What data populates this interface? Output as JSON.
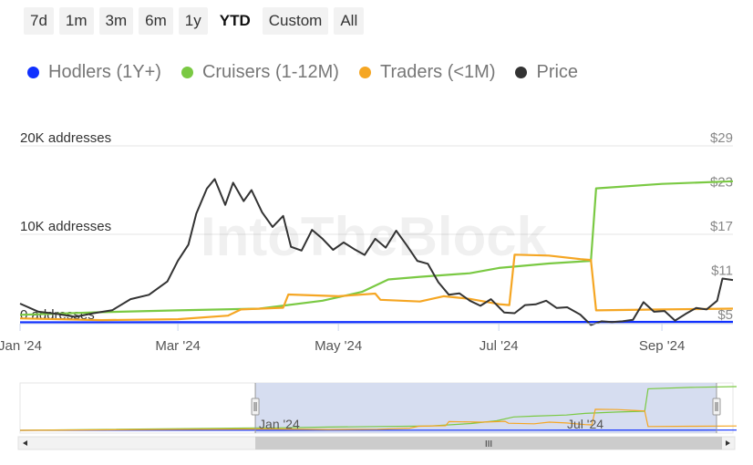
{
  "range_selector": {
    "buttons": [
      "7d",
      "1m",
      "3m",
      "6m",
      "1y",
      "YTD",
      "Custom",
      "All"
    ],
    "active": "YTD"
  },
  "legend": [
    {
      "name": "Hodlers (1Y+)",
      "color": "#1030ff"
    },
    {
      "name": "Cruisers (1-12M)",
      "color": "#7ac943"
    },
    {
      "name": "Traders (<1M)",
      "color": "#f5a623"
    },
    {
      "name": "Price",
      "color": "#333333"
    }
  ],
  "watermark": "IntoTheBlock",
  "chart_data": {
    "type": "line",
    "x_axis": {
      "ticks": [
        "Jan '24",
        "Mar '24",
        "May '24",
        "Jul '24",
        "Sep '24"
      ],
      "range": [
        "2024-01-01",
        "2024-09-28"
      ]
    },
    "y_left": {
      "labels": [
        "0 addresses",
        "10K addresses",
        "20K addresses"
      ],
      "ticks": [
        0,
        10000,
        20000
      ],
      "range": [
        0,
        20000
      ]
    },
    "y_right": {
      "labels": [
        "$5",
        "$11",
        "$17",
        "$23",
        "$29"
      ],
      "ticks": [
        5,
        11,
        17,
        23,
        29
      ],
      "range": [
        5,
        29
      ]
    },
    "series": [
      {
        "name": "Hodlers (1Y+)",
        "color": "#1030ff",
        "axis": "left",
        "points": [
          [
            "2024-01-01",
            50
          ],
          [
            "2024-03-01",
            60
          ],
          [
            "2024-06-01",
            80
          ],
          [
            "2024-09-28",
            100
          ]
        ]
      },
      {
        "name": "Cruisers (1-12M)",
        "color": "#7ac943",
        "axis": "left",
        "points": [
          [
            "2024-01-01",
            900
          ],
          [
            "2024-02-01",
            1200
          ],
          [
            "2024-03-01",
            1400
          ],
          [
            "2024-04-01",
            1600
          ],
          [
            "2024-04-25",
            2500
          ],
          [
            "2024-05-10",
            3500
          ],
          [
            "2024-05-20",
            4900
          ],
          [
            "2024-06-01",
            5200
          ],
          [
            "2024-06-20",
            5600
          ],
          [
            "2024-07-01",
            6200
          ],
          [
            "2024-07-20",
            6700
          ],
          [
            "2024-08-05",
            7000
          ],
          [
            "2024-08-07",
            15200
          ],
          [
            "2024-09-01",
            15700
          ],
          [
            "2024-09-28",
            16000
          ]
        ]
      },
      {
        "name": "Traders (<1M)",
        "color": "#f5a623",
        "axis": "left",
        "points": [
          [
            "2024-01-01",
            500
          ],
          [
            "2024-02-01",
            300
          ],
          [
            "2024-03-01",
            400
          ],
          [
            "2024-03-20",
            800
          ],
          [
            "2024-03-25",
            1500
          ],
          [
            "2024-04-10",
            1700
          ],
          [
            "2024-04-12",
            3200
          ],
          [
            "2024-05-01",
            3000
          ],
          [
            "2024-05-15",
            3300
          ],
          [
            "2024-05-17",
            2600
          ],
          [
            "2024-06-01",
            2400
          ],
          [
            "2024-06-10",
            3000
          ],
          [
            "2024-06-20",
            2700
          ],
          [
            "2024-07-01",
            2100
          ],
          [
            "2024-07-05",
            2000
          ],
          [
            "2024-07-07",
            7700
          ],
          [
            "2024-07-20",
            7600
          ],
          [
            "2024-08-01",
            7200
          ],
          [
            "2024-08-05",
            7100
          ],
          [
            "2024-08-07",
            1400
          ],
          [
            "2024-09-01",
            1500
          ],
          [
            "2024-09-28",
            1600
          ]
        ]
      },
      {
        "name": "Price",
        "color": "#333333",
        "axis": "right",
        "points": [
          [
            "2024-01-01",
            7.6
          ],
          [
            "2024-01-08",
            6.5
          ],
          [
            "2024-01-15",
            6.2
          ],
          [
            "2024-01-22",
            5.8
          ],
          [
            "2024-01-29",
            6.3
          ],
          [
            "2024-02-05",
            6.7
          ],
          [
            "2024-02-12",
            8.2
          ],
          [
            "2024-02-19",
            8.8
          ],
          [
            "2024-02-26",
            10.6
          ],
          [
            "2024-03-01",
            13.4
          ],
          [
            "2024-03-05",
            15.6
          ],
          [
            "2024-03-08",
            19.8
          ],
          [
            "2024-03-12",
            23.2
          ],
          [
            "2024-03-15",
            24.5
          ],
          [
            "2024-03-19",
            21.0
          ],
          [
            "2024-03-22",
            24.0
          ],
          [
            "2024-03-26",
            21.5
          ],
          [
            "2024-03-29",
            23.0
          ],
          [
            "2024-04-02",
            20.0
          ],
          [
            "2024-04-06",
            18.0
          ],
          [
            "2024-04-10",
            19.5
          ],
          [
            "2024-04-13",
            15.3
          ],
          [
            "2024-04-17",
            14.8
          ],
          [
            "2024-04-21",
            17.6
          ],
          [
            "2024-04-25",
            16.4
          ],
          [
            "2024-04-29",
            14.9
          ],
          [
            "2024-05-03",
            15.9
          ],
          [
            "2024-05-07",
            15.0
          ],
          [
            "2024-05-11",
            14.2
          ],
          [
            "2024-05-15",
            16.4
          ],
          [
            "2024-05-19",
            15.2
          ],
          [
            "2024-05-23",
            17.5
          ],
          [
            "2024-05-27",
            15.5
          ],
          [
            "2024-05-31",
            13.4
          ],
          [
            "2024-06-04",
            13.0
          ],
          [
            "2024-06-08",
            10.5
          ],
          [
            "2024-06-12",
            8.8
          ],
          [
            "2024-06-16",
            9.0
          ],
          [
            "2024-06-20",
            8.0
          ],
          [
            "2024-06-24",
            7.3
          ],
          [
            "2024-06-28",
            8.2
          ],
          [
            "2024-07-03",
            6.4
          ],
          [
            "2024-07-07",
            6.3
          ],
          [
            "2024-07-11",
            7.4
          ],
          [
            "2024-07-15",
            7.5
          ],
          [
            "2024-07-19",
            8.0
          ],
          [
            "2024-07-23",
            7.0
          ],
          [
            "2024-07-27",
            7.1
          ],
          [
            "2024-08-01",
            6.1
          ],
          [
            "2024-08-05",
            4.7
          ],
          [
            "2024-08-09",
            5.2
          ],
          [
            "2024-08-13",
            5.1
          ],
          [
            "2024-08-17",
            5.2
          ],
          [
            "2024-08-21",
            5.4
          ],
          [
            "2024-08-25",
            7.8
          ],
          [
            "2024-08-29",
            6.5
          ],
          [
            "2024-09-02",
            6.6
          ],
          [
            "2024-09-06",
            5.3
          ],
          [
            "2024-09-10",
            6.2
          ],
          [
            "2024-09-14",
            7.0
          ],
          [
            "2024-09-18",
            6.8
          ],
          [
            "2024-09-22",
            8.0
          ],
          [
            "2024-09-24",
            11.0
          ],
          [
            "2024-09-28",
            10.8
          ]
        ]
      }
    ],
    "grid": true
  },
  "navigator": {
    "labels": [
      "Jan '24",
      "Jul '24"
    ],
    "selection_fraction": [
      0.33,
      1.0
    ],
    "scroll_handle_glyph": "III"
  }
}
